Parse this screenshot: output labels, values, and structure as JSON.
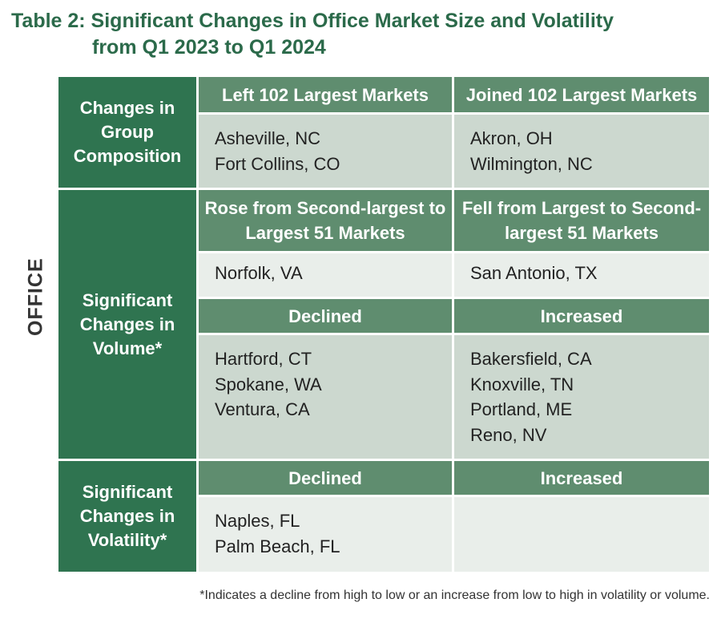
{
  "title": {
    "line1": "Table 2: Significant Changes in Office Market Size and Volatility",
    "line2": "from Q1 2023 to Q1 2024"
  },
  "side_label": "OFFICE",
  "sections": {
    "composition": {
      "row_label": "Changes in Group Composition",
      "left_header": "Left 102 Largest Markets",
      "right_header": "Joined 102 Largest Markets",
      "left_items": [
        "Asheville, NC",
        "Fort Collins, CO"
      ],
      "right_items": [
        "Akron, OH",
        "Wilmington, NC"
      ]
    },
    "volume": {
      "row_label": "Significant Changes in Volume*",
      "rank_left_header": "Rose from Second-largest to Largest 51 Markets",
      "rank_right_header": "Fell from Largest to Second-largest 51 Markets",
      "rank_left_items": [
        "Norfolk, VA"
      ],
      "rank_right_items": [
        "San Antonio, TX"
      ],
      "change_left_header": "Declined",
      "change_right_header": "Increased",
      "change_left_items": [
        "Hartford, CT",
        "Spokane, WA",
        "Ventura, CA"
      ],
      "change_right_items": [
        "Bakersfield, CA",
        "Knoxville, TN",
        "Portland, ME",
        "Reno, NV"
      ]
    },
    "volatility": {
      "row_label": "Significant Changes in Volatility*",
      "left_header": "Declined",
      "right_header": "Increased",
      "left_items": [
        "Naples, FL",
        "Palm Beach, FL"
      ],
      "right_items": []
    }
  },
  "footnote": "*Indicates a decline from high to low or an increase from low to high in volatility or volume."
}
